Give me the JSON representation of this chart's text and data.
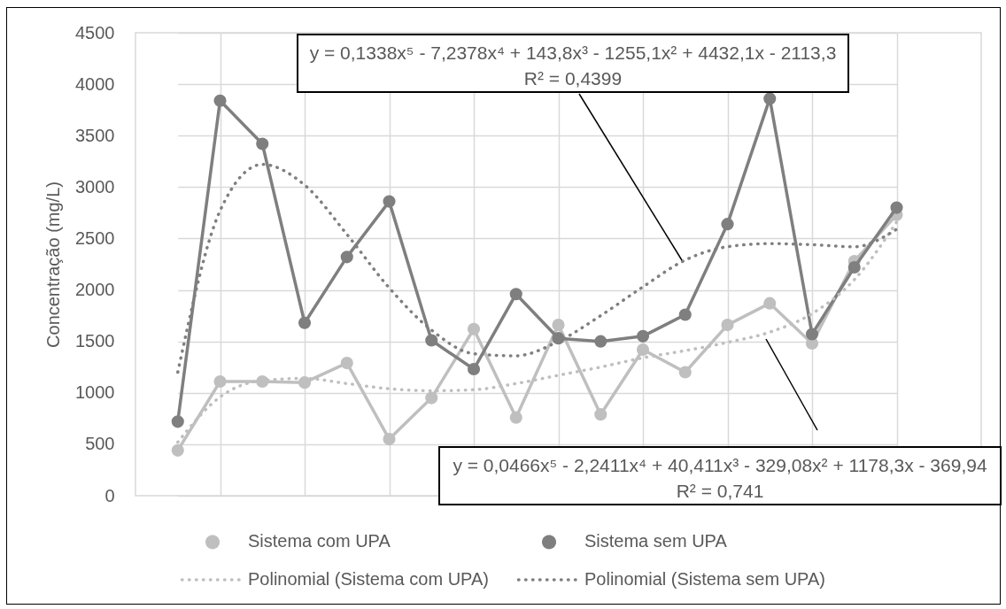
{
  "chart_data": {
    "type": "line",
    "ylabel": "Concentração (mg/L)",
    "categories": [
      null,
      null,
      null,
      null,
      null,
      null,
      null,
      null,
      null,
      null,
      null,
      null,
      null,
      null,
      null,
      null,
      null,
      null
    ],
    "ylim": [
      0,
      4500
    ],
    "yticks": [
      0,
      500,
      1000,
      1500,
      2000,
      2500,
      3000,
      3500,
      4000,
      4500
    ],
    "grid": true,
    "tick_labels": "y",
    "legend": "bottom",
    "series": [
      {
        "name": "Sistema com UPA",
        "color": "#bfbfbf",
        "marker": "circle",
        "line_style": "solid",
        "values": [
          440,
          1110,
          1110,
          1100,
          1290,
          550,
          950,
          1620,
          760,
          1660,
          790,
          1420,
          1200,
          1660,
          1870,
          1480,
          2280,
          2730
        ]
      },
      {
        "name": "Sistema sem UPA",
        "color": "#7f7f7f",
        "marker": "circle",
        "line_style": "solid",
        "values": [
          720,
          3840,
          3420,
          1680,
          2320,
          2860,
          1510,
          1230,
          1960,
          1530,
          1500,
          1550,
          1760,
          2640,
          3860,
          1570,
          2220,
          2800
        ]
      },
      {
        "name": "Polinomial (Sistema com UPA)",
        "type": "line",
        "color": "#bfbfbf",
        "marker": "none",
        "line_style": "dotted",
        "values": [
          520,
          960,
          1120,
          1140,
          1090,
          1040,
          1020,
          1030,
          1090,
          1170,
          1250,
          1340,
          1410,
          1490,
          1590,
          1770,
          2100,
          2660
        ]
      },
      {
        "name": "Polinomial (Sistema sem UPA)",
        "type": "line",
        "color": "#7f7f7f",
        "marker": "none",
        "line_style": "dotted",
        "values": [
          1200,
          2770,
          3220,
          3020,
          2540,
          2020,
          1610,
          1380,
          1360,
          1500,
          1750,
          2030,
          2290,
          2420,
          2450,
          2440,
          2420,
          2590
        ]
      }
    ],
    "annotations": [
      "y = 0,1338x⁵ - 7,2378x⁴ + 143,8x³ - 1255,1x² + 4432,1x - 2113,3\nR² = 0,4399",
      "y = 0,0466x⁵ - 2,2411x⁴ + 40,411x³ - 329,08x² + 1178,3x - 369,94\nR² = 0,741"
    ]
  }
}
